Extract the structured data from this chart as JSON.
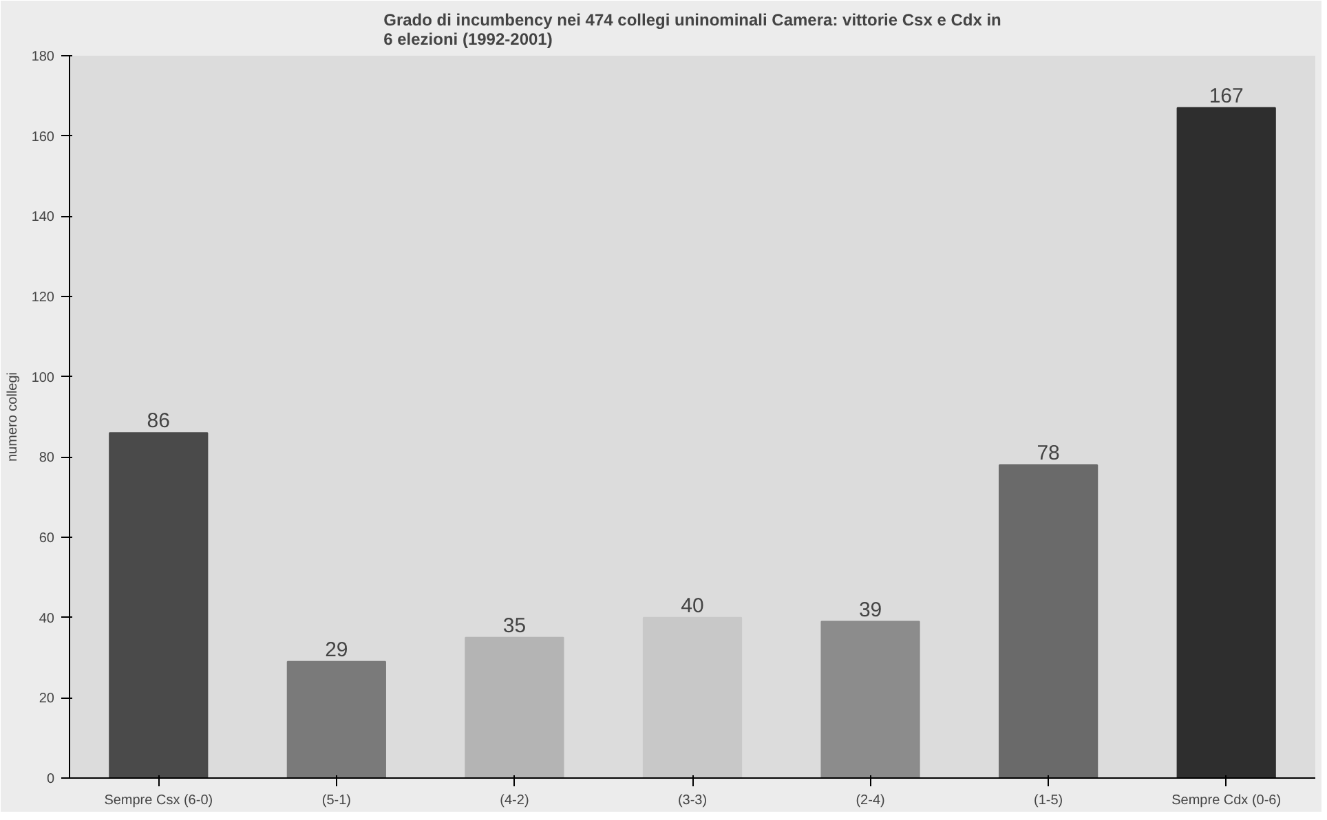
{
  "chart_data": {
    "type": "bar",
    "title": "Grado di incumbency nei 474 collegi uninominali Camera: vittorie Csx e Cdx in 6 elezioni (1992-2001)",
    "ylabel": "numero collegi",
    "categories": [
      "Sempre Csx (6-0)",
      "(5-1)",
      "(4-2)",
      "(3-3)",
      "(2-4)",
      "(1-5)",
      "Sempre Cdx (0-6)"
    ],
    "values": [
      86,
      29,
      35,
      40,
      39,
      78,
      167
    ],
    "colors": [
      "#4a4a4a",
      "#7a7a7a",
      "#b4b4b4",
      "#c8c8c8",
      "#8c8c8c",
      "#6a6a6a",
      "#2e2e2e"
    ],
    "ylim": [
      0,
      180
    ],
    "yticks": [
      0,
      20,
      40,
      60,
      80,
      100,
      120,
      140,
      160,
      180
    ],
    "data_labels": true
  }
}
